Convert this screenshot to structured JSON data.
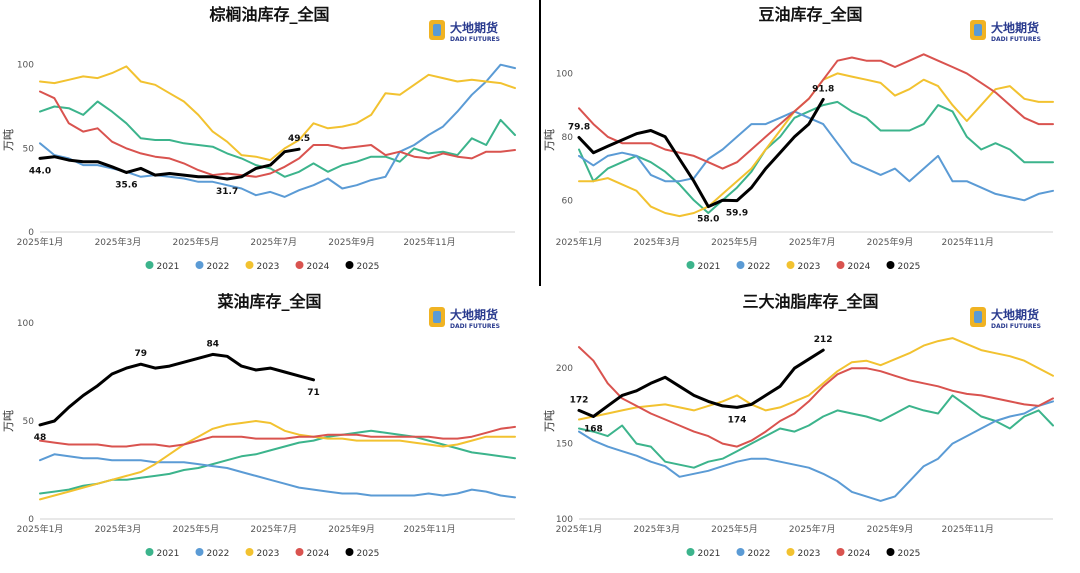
{
  "logo": {
    "cn": "大地期货",
    "en": "DADI FUTURES"
  },
  "legend_labels": [
    "2021",
    "2022",
    "2023",
    "2024",
    "2025"
  ],
  "colors": {
    "2021": "#3cb48c",
    "2022": "#5b9bd5",
    "2023": "#f2c230",
    "2024": "#d9534f",
    "2025": "#000000"
  },
  "chart_data": [
    {
      "type": "line",
      "title": "棕榈油库存_全国",
      "ylabel": "万吨",
      "ylim": [
        0,
        110
      ],
      "yticks": [
        0,
        50,
        100
      ],
      "xticks": [
        "2025年1月",
        "2025年3月",
        "2025年5月",
        "2025年7月",
        "2025年9月",
        "2025年11月"
      ],
      "series": [
        {
          "name": "2021",
          "values": [
            72,
            75,
            74,
            70,
            78,
            72,
            65,
            56,
            55,
            55,
            53,
            52,
            51,
            47,
            44,
            40,
            38,
            33,
            36,
            41,
            36,
            40,
            42,
            45,
            45,
            42,
            50,
            47,
            48,
            46,
            56,
            52,
            67,
            58
          ]
        },
        {
          "name": "2022",
          "values": [
            53,
            46,
            44,
            40,
            40,
            38,
            36,
            33,
            34,
            33,
            32,
            30,
            30,
            28,
            26,
            22,
            24,
            21,
            25,
            28,
            32,
            26,
            28,
            31,
            33,
            48,
            52,
            58,
            63,
            72,
            82,
            90,
            100,
            98
          ]
        },
        {
          "name": "2023",
          "values": [
            90,
            89,
            91,
            93,
            92,
            95,
            99,
            90,
            88,
            83,
            78,
            70,
            60,
            54,
            46,
            45,
            43,
            50,
            55,
            65,
            62,
            63,
            65,
            70,
            83,
            82,
            88,
            94,
            92,
            90,
            91,
            90,
            89,
            86
          ]
        },
        {
          "name": "2024",
          "values": [
            84,
            80,
            65,
            60,
            62,
            54,
            50,
            47,
            45,
            44,
            41,
            37,
            34,
            35,
            34,
            33,
            35,
            39,
            44,
            52,
            52,
            50,
            51,
            52,
            46,
            48,
            45,
            44,
            47,
            45,
            44,
            48,
            48,
            49
          ]
        },
        {
          "name": "2025",
          "values": [
            44.0,
            45,
            43,
            42,
            42,
            39,
            35.6,
            38,
            34,
            35,
            34,
            33,
            33,
            31.7,
            33,
            38,
            40,
            48,
            49.5
          ]
        }
      ],
      "annotations": [
        {
          "series": "2025",
          "index": 0,
          "label": "44.0",
          "pos": "below"
        },
        {
          "series": "2025",
          "index": 6,
          "label": "35.6",
          "pos": "below"
        },
        {
          "series": "2025",
          "index": 13,
          "label": "31.7",
          "pos": "below"
        },
        {
          "series": "2025",
          "index": 18,
          "label": "49.5",
          "pos": "above"
        }
      ]
    },
    {
      "type": "line",
      "title": "豆油库存_全国",
      "ylabel": "万吨",
      "ylim": [
        50,
        108
      ],
      "yticks": [
        60,
        80,
        100
      ],
      "xticks": [
        "2025年1月",
        "2025年3月",
        "2025年5月",
        "2025年7月",
        "2025年9月",
        "2025年11月"
      ],
      "series": [
        {
          "name": "2021",
          "values": [
            76,
            66,
            70,
            72,
            74,
            72,
            69,
            65,
            60,
            56,
            60,
            64,
            69,
            76,
            80,
            86,
            88,
            90,
            91,
            88,
            86,
            82,
            82,
            82,
            84,
            90,
            88,
            80,
            76,
            78,
            76,
            72,
            72,
            72
          ]
        },
        {
          "name": "2022",
          "values": [
            74,
            71,
            74,
            75,
            74,
            68,
            66,
            66,
            67,
            73,
            76,
            80,
            84,
            84,
            86,
            88,
            86,
            84,
            78,
            72,
            70,
            68,
            70,
            66,
            70,
            74,
            66,
            66,
            64,
            62,
            61,
            60,
            62,
            63
          ]
        },
        {
          "name": "2023",
          "values": [
            66,
            66,
            67,
            65,
            63,
            58,
            56,
            55,
            56,
            58,
            62,
            66,
            70,
            76,
            82,
            88,
            92,
            98,
            100,
            99,
            98,
            97,
            93,
            95,
            98,
            96,
            90,
            85,
            90,
            95,
            96,
            92,
            91,
            91
          ]
        },
        {
          "name": "2024",
          "values": [
            89,
            84,
            80,
            78,
            78,
            78,
            76,
            75,
            74,
            72,
            70,
            72,
            76,
            80,
            84,
            88,
            92,
            98,
            104,
            105,
            104,
            104,
            102,
            104,
            106,
            104,
            102,
            100,
            97,
            94,
            90,
            86,
            84,
            84
          ]
        },
        {
          "name": "2025",
          "values": [
            79.8,
            75,
            77,
            79,
            81,
            82,
            80,
            73,
            66,
            58.0,
            60,
            59.9,
            64,
            70,
            75,
            80,
            84,
            91.8
          ]
        }
      ],
      "annotations": [
        {
          "series": "2025",
          "index": 0,
          "label": "79.8",
          "pos": "above"
        },
        {
          "series": "2025",
          "index": 9,
          "label": "58.0",
          "pos": "below"
        },
        {
          "series": "2025",
          "index": 11,
          "label": "59.9",
          "pos": "below"
        },
        {
          "series": "2025",
          "index": 17,
          "label": "91.8",
          "pos": "above"
        }
      ]
    },
    {
      "type": "line",
      "title": "菜油库存_全国",
      "ylabel": "万吨",
      "ylim": [
        0,
        100
      ],
      "yticks": [
        0,
        50,
        100
      ],
      "xticks": [
        "2025年1月",
        "2025年3月",
        "2025年5月",
        "2025年7月",
        "2025年9月",
        "2025年11月"
      ],
      "series": [
        {
          "name": "2021",
          "values": [
            13,
            14,
            15,
            17,
            18,
            20,
            20,
            21,
            22,
            23,
            25,
            26,
            28,
            30,
            32,
            33,
            35,
            37,
            39,
            40,
            42,
            43,
            44,
            45,
            44,
            43,
            42,
            40,
            38,
            36,
            34,
            33,
            32,
            31
          ]
        },
        {
          "name": "2022",
          "values": [
            30,
            33,
            32,
            31,
            31,
            30,
            30,
            30,
            29,
            29,
            29,
            28,
            27,
            26,
            24,
            22,
            20,
            18,
            16,
            15,
            14,
            13,
            13,
            12,
            12,
            12,
            12,
            13,
            12,
            13,
            15,
            14,
            12,
            11
          ]
        },
        {
          "name": "2023",
          "values": [
            10,
            12,
            14,
            16,
            18,
            20,
            22,
            24,
            28,
            33,
            38,
            42,
            46,
            48,
            49,
            50,
            49,
            45,
            43,
            42,
            41,
            41,
            40,
            40,
            40,
            40,
            39,
            38,
            37,
            38,
            40,
            42,
            42,
            42
          ]
        },
        {
          "name": "2024",
          "values": [
            40,
            39,
            38,
            38,
            38,
            37,
            37,
            38,
            38,
            37,
            38,
            40,
            42,
            42,
            42,
            41,
            41,
            41,
            42,
            42,
            43,
            43,
            43,
            42,
            42,
            42,
            42,
            42,
            41,
            41,
            42,
            44,
            46,
            47
          ]
        },
        {
          "name": "2025",
          "values": [
            48,
            50,
            57,
            63,
            68,
            74,
            77,
            79,
            77,
            78,
            80,
            82,
            84,
            83,
            78,
            76,
            77,
            75,
            73,
            71
          ]
        }
      ],
      "annotations": [
        {
          "series": "2025",
          "index": 0,
          "label": "48",
          "pos": "below"
        },
        {
          "series": "2025",
          "index": 7,
          "label": "79",
          "pos": "above"
        },
        {
          "series": "2025",
          "index": 12,
          "label": "84",
          "pos": "above"
        },
        {
          "series": "2025",
          "index": 19,
          "label": "71",
          "pos": "below"
        }
      ]
    },
    {
      "type": "line",
      "title": "三大油脂库存_全国",
      "ylabel": "万吨",
      "ylim": [
        100,
        230
      ],
      "yticks": [
        100,
        150,
        200
      ],
      "xticks": [
        "2025年1月",
        "2025年3月",
        "2025年5月",
        "2025年7月",
        "2025年9月",
        "2025年11月"
      ],
      "series": [
        {
          "name": "2021",
          "values": [
            160,
            158,
            155,
            162,
            150,
            148,
            138,
            136,
            134,
            138,
            140,
            145,
            150,
            155,
            160,
            158,
            162,
            168,
            172,
            170,
            168,
            165,
            170,
            175,
            172,
            170,
            182,
            175,
            168,
            165,
            160,
            168,
            172,
            162
          ]
        },
        {
          "name": "2022",
          "values": [
            158,
            152,
            148,
            145,
            142,
            138,
            135,
            128,
            130,
            132,
            135,
            138,
            140,
            140,
            138,
            136,
            134,
            130,
            125,
            118,
            115,
            112,
            115,
            125,
            135,
            140,
            150,
            155,
            160,
            165,
            168,
            170,
            175,
            178
          ]
        },
        {
          "name": "2023",
          "values": [
            166,
            168,
            170,
            172,
            174,
            175,
            176,
            174,
            172,
            175,
            178,
            182,
            176,
            172,
            174,
            178,
            182,
            190,
            198,
            204,
            205,
            202,
            206,
            210,
            215,
            218,
            220,
            216,
            212,
            210,
            208,
            205,
            200,
            195
          ]
        },
        {
          "name": "2024",
          "values": [
            214,
            205,
            190,
            180,
            175,
            170,
            166,
            162,
            158,
            155,
            150,
            148,
            152,
            158,
            165,
            170,
            178,
            188,
            196,
            200,
            200,
            198,
            195,
            192,
            190,
            188,
            185,
            183,
            182,
            180,
            178,
            176,
            175,
            180
          ]
        },
        {
          "name": "2025",
          "values": [
            172,
            168,
            175,
            182,
            185,
            190,
            194,
            188,
            182,
            178,
            175,
            174,
            176,
            182,
            188,
            200,
            206,
            212
          ]
        }
      ],
      "annotations": [
        {
          "series": "2025",
          "index": 0,
          "label": "172",
          "pos": "above"
        },
        {
          "series": "2025",
          "index": 1,
          "label": "168",
          "pos": "below"
        },
        {
          "series": "2025",
          "index": 11,
          "label": "174",
          "pos": "below"
        },
        {
          "series": "2025",
          "index": 17,
          "label": "212",
          "pos": "above"
        }
      ]
    }
  ]
}
